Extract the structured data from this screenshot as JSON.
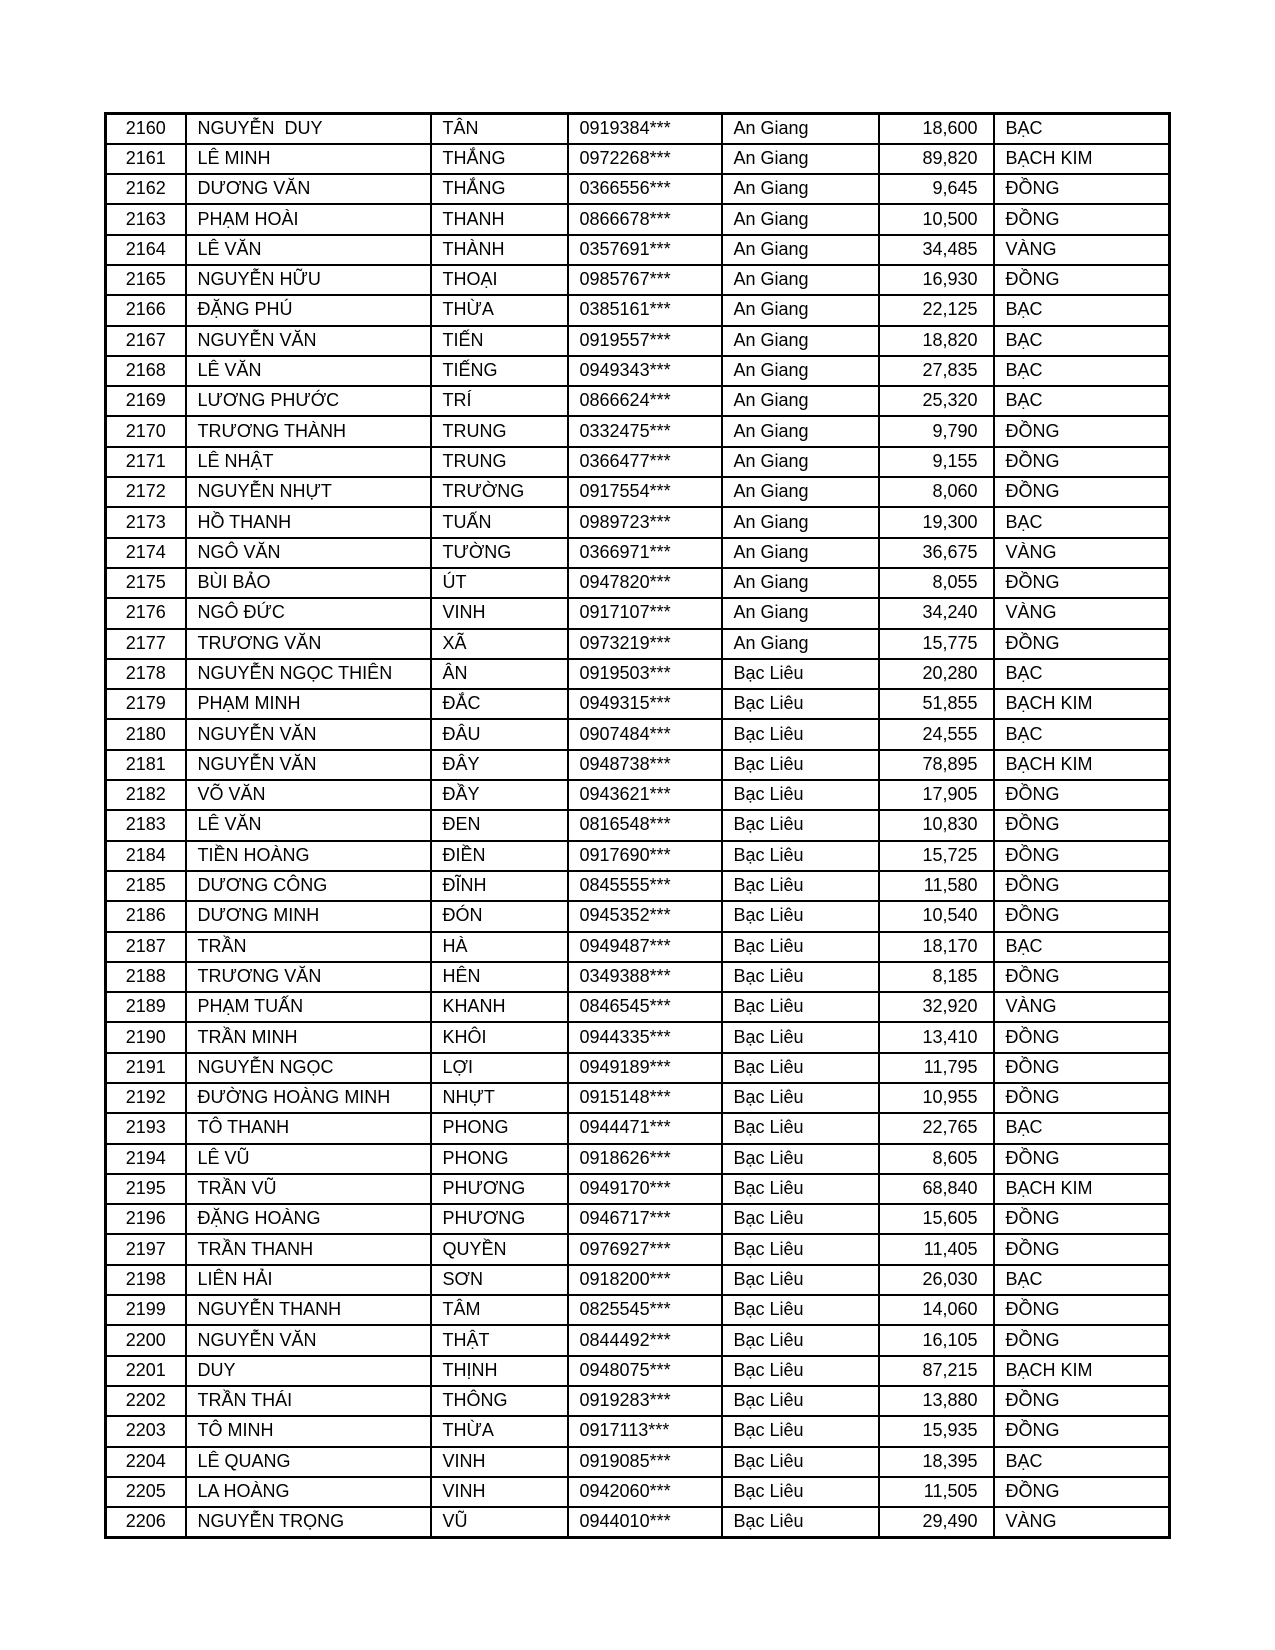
{
  "table": {
    "rows": [
      [
        "2160",
        "NGUYỄN  DUY",
        "TÂN",
        "0919384***",
        "An Giang",
        "18,600",
        "BẠC"
      ],
      [
        "2161",
        "LÊ MINH",
        "THẮNG",
        "0972268***",
        "An Giang",
        "89,820",
        "BẠCH KIM"
      ],
      [
        "2162",
        "DƯƠNG VĂN",
        "THẮNG",
        "0366556***",
        "An Giang",
        "9,645",
        "ĐỒNG"
      ],
      [
        "2163",
        "PHẠM HOÀI",
        "THANH",
        "0866678***",
        "An Giang",
        "10,500",
        "ĐỒNG"
      ],
      [
        "2164",
        "LÊ VĂN",
        "THÀNH",
        "0357691***",
        "An Giang",
        "34,485",
        "VÀNG"
      ],
      [
        "2165",
        "NGUYỄN HỮU",
        "THOẠI",
        "0985767***",
        "An Giang",
        "16,930",
        "ĐỒNG"
      ],
      [
        "2166",
        "ĐẶNG PHÚ",
        "THỪA",
        "0385161***",
        "An Giang",
        "22,125",
        "BẠC"
      ],
      [
        "2167",
        "NGUYỄN VĂN",
        "TIẾN",
        "0919557***",
        "An Giang",
        "18,820",
        "BẠC"
      ],
      [
        "2168",
        "LÊ VĂN",
        "TIẾNG",
        "0949343***",
        "An Giang",
        "27,835",
        "BẠC"
      ],
      [
        "2169",
        "LƯƠNG PHƯỚC",
        "TRÍ",
        "0866624***",
        "An Giang",
        "25,320",
        "BẠC"
      ],
      [
        "2170",
        "TRƯƠNG THÀNH",
        "TRUNG",
        "0332475***",
        "An Giang",
        "9,790",
        "ĐỒNG"
      ],
      [
        "2171",
        "LÊ NHẬT",
        "TRUNG",
        "0366477***",
        "An Giang",
        "9,155",
        "ĐỒNG"
      ],
      [
        "2172",
        "NGUYỄN NHỰT",
        "TRƯỜNG",
        "0917554***",
        "An Giang",
        "8,060",
        "ĐỒNG"
      ],
      [
        "2173",
        "HỒ THANH",
        "TUẤN",
        "0989723***",
        "An Giang",
        "19,300",
        "BẠC"
      ],
      [
        "2174",
        "NGÔ VĂN",
        "TƯỜNG",
        "0366971***",
        "An Giang",
        "36,675",
        "VÀNG"
      ],
      [
        "2175",
        "BÙI BẢO",
        "ÚT",
        "0947820***",
        "An Giang",
        "8,055",
        "ĐỒNG"
      ],
      [
        "2176",
        "NGÔ ĐỨC",
        "VINH",
        "0917107***",
        "An Giang",
        "34,240",
        "VÀNG"
      ],
      [
        "2177",
        "TRƯƠNG VĂN",
        "XÃ",
        "0973219***",
        "An Giang",
        "15,775",
        "ĐỒNG"
      ],
      [
        "2178",
        "NGUYỄN NGỌC THIÊN",
        "ÂN",
        "0919503***",
        "Bạc Liêu",
        "20,280",
        "BẠC"
      ],
      [
        "2179",
        "PHẠM MINH",
        "ĐẮC",
        "0949315***",
        "Bạc Liêu",
        "51,855",
        "BẠCH KIM"
      ],
      [
        "2180",
        "NGUYỄN VĂN",
        "ĐÂU",
        "0907484***",
        "Bạc Liêu",
        "24,555",
        "BẠC"
      ],
      [
        "2181",
        "NGUYỄN VĂN",
        "ĐÂY",
        "0948738***",
        "Bạc Liêu",
        "78,895",
        "BẠCH KIM"
      ],
      [
        "2182",
        "VÕ VĂN",
        "ĐẦY",
        "0943621***",
        "Bạc Liêu",
        "17,905",
        "ĐỒNG"
      ],
      [
        "2183",
        "LÊ VĂN",
        "ĐEN",
        "0816548***",
        "Bạc Liêu",
        "10,830",
        "ĐỒNG"
      ],
      [
        "2184",
        "TIỀN HOÀNG",
        "ĐIỀN",
        "0917690***",
        "Bạc Liêu",
        "15,725",
        "ĐỒNG"
      ],
      [
        "2185",
        "DƯƠNG CÔNG",
        "ĐĨNH",
        "0845555***",
        "Bạc Liêu",
        "11,580",
        "ĐỒNG"
      ],
      [
        "2186",
        "DƯƠNG MINH",
        "ĐÓN",
        "0945352***",
        "Bạc Liêu",
        "10,540",
        "ĐỒNG"
      ],
      [
        "2187",
        "TRẦN",
        "HÀ",
        "0949487***",
        "Bạc Liêu",
        "18,170",
        "BẠC"
      ],
      [
        "2188",
        "TRƯƠNG VĂN",
        "HÊN",
        "0349388***",
        "Bạc Liêu",
        "8,185",
        "ĐỒNG"
      ],
      [
        "2189",
        "PHẠM TUẤN",
        "KHANH",
        "0846545***",
        "Bạc Liêu",
        "32,920",
        "VÀNG"
      ],
      [
        "2190",
        "TRẦN MINH",
        "KHÔI",
        "0944335***",
        "Bạc Liêu",
        "13,410",
        "ĐỒNG"
      ],
      [
        "2191",
        "NGUYỄN NGỌC",
        "LỢI",
        "0949189***",
        "Bạc Liêu",
        "11,795",
        "ĐỒNG"
      ],
      [
        "2192",
        "ĐƯỜNG HOÀNG MINH",
        "NHỰT",
        "0915148***",
        "Bạc Liêu",
        "10,955",
        "ĐỒNG"
      ],
      [
        "2193",
        "TÔ THANH",
        "PHONG",
        "0944471***",
        "Bạc Liêu",
        "22,765",
        "BẠC"
      ],
      [
        "2194",
        "LÊ VŨ",
        "PHONG",
        "0918626***",
        "Bạc Liêu",
        "8,605",
        "ĐỒNG"
      ],
      [
        "2195",
        "TRẦN VŨ",
        "PHƯƠNG",
        "0949170***",
        "Bạc Liêu",
        "68,840",
        "BẠCH KIM"
      ],
      [
        "2196",
        "ĐẶNG HOÀNG",
        "PHƯƠNG",
        "0946717***",
        "Bạc Liêu",
        "15,605",
        "ĐỒNG"
      ],
      [
        "2197",
        "TRẦN THANH",
        "QUYỀN",
        "0976927***",
        "Bạc Liêu",
        "11,405",
        "ĐỒNG"
      ],
      [
        "2198",
        "LIÊN HẢI",
        "SƠN",
        "0918200***",
        "Bạc Liêu",
        "26,030",
        "BẠC"
      ],
      [
        "2199",
        "NGUYỄN THANH",
        "TÂM",
        "0825545***",
        "Bạc Liêu",
        "14,060",
        "ĐỒNG"
      ],
      [
        "2200",
        "NGUYỄN VĂN",
        "THẬT",
        "0844492***",
        "Bạc Liêu",
        "16,105",
        "ĐỒNG"
      ],
      [
        "2201",
        "DUY",
        "THỊNH",
        "0948075***",
        "Bạc Liêu",
        "87,215",
        "BẠCH KIM"
      ],
      [
        "2202",
        "TRẦN THÁI",
        "THÔNG",
        "0919283***",
        "Bạc Liêu",
        "13,880",
        "ĐỒNG"
      ],
      [
        "2203",
        "TÔ MINH",
        "THỪA",
        "0917113***",
        "Bạc Liêu",
        "15,935",
        "ĐỒNG"
      ],
      [
        "2204",
        "LÊ QUANG",
        "VINH",
        "0919085***",
        "Bạc Liêu",
        "18,395",
        "BẠC"
      ],
      [
        "2205",
        "LA HOÀNG",
        "VINH",
        "0942060***",
        "Bạc Liêu",
        "11,505",
        "ĐỒNG"
      ],
      [
        "2206",
        "NGUYỄN TRỌNG",
        "VŨ",
        "0944010***",
        "Bạc Liêu",
        "29,490",
        "VÀNG"
      ]
    ]
  }
}
